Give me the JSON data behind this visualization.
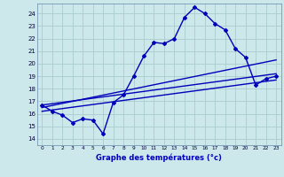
{
  "xlabel": "Graphe des températures (°c)",
  "xlim": [
    -0.5,
    23.5
  ],
  "ylim": [
    13.5,
    24.8
  ],
  "yticks": [
    14,
    15,
    16,
    17,
    18,
    19,
    20,
    21,
    22,
    23,
    24
  ],
  "xticks": [
    0,
    1,
    2,
    3,
    4,
    5,
    6,
    7,
    8,
    9,
    10,
    11,
    12,
    13,
    14,
    15,
    16,
    17,
    18,
    19,
    20,
    21,
    22,
    23
  ],
  "bg_color": "#cce8ea",
  "grid_color": "#aacccc",
  "line_color": "#0000bb",
  "main_curve": {
    "x": [
      0,
      1,
      2,
      3,
      4,
      5,
      6,
      7,
      8,
      9,
      10,
      11,
      12,
      13,
      14,
      15,
      16,
      17,
      18,
      19,
      20,
      21,
      22,
      23
    ],
    "y": [
      16.7,
      16.2,
      15.9,
      15.3,
      15.6,
      15.5,
      14.4,
      16.9,
      17.5,
      19.0,
      20.6,
      21.7,
      21.6,
      22.0,
      23.7,
      24.5,
      24.0,
      23.2,
      22.7,
      21.2,
      20.5,
      18.3,
      18.8,
      19.0
    ]
  },
  "trend_lines": [
    {
      "x0": 0,
      "y0": 16.7,
      "x1": 23,
      "y1": 19.2
    },
    {
      "x0": 0,
      "y0": 16.5,
      "x1": 23,
      "y1": 20.3
    },
    {
      "x0": 0,
      "y0": 16.2,
      "x1": 23,
      "y1": 18.7
    }
  ]
}
